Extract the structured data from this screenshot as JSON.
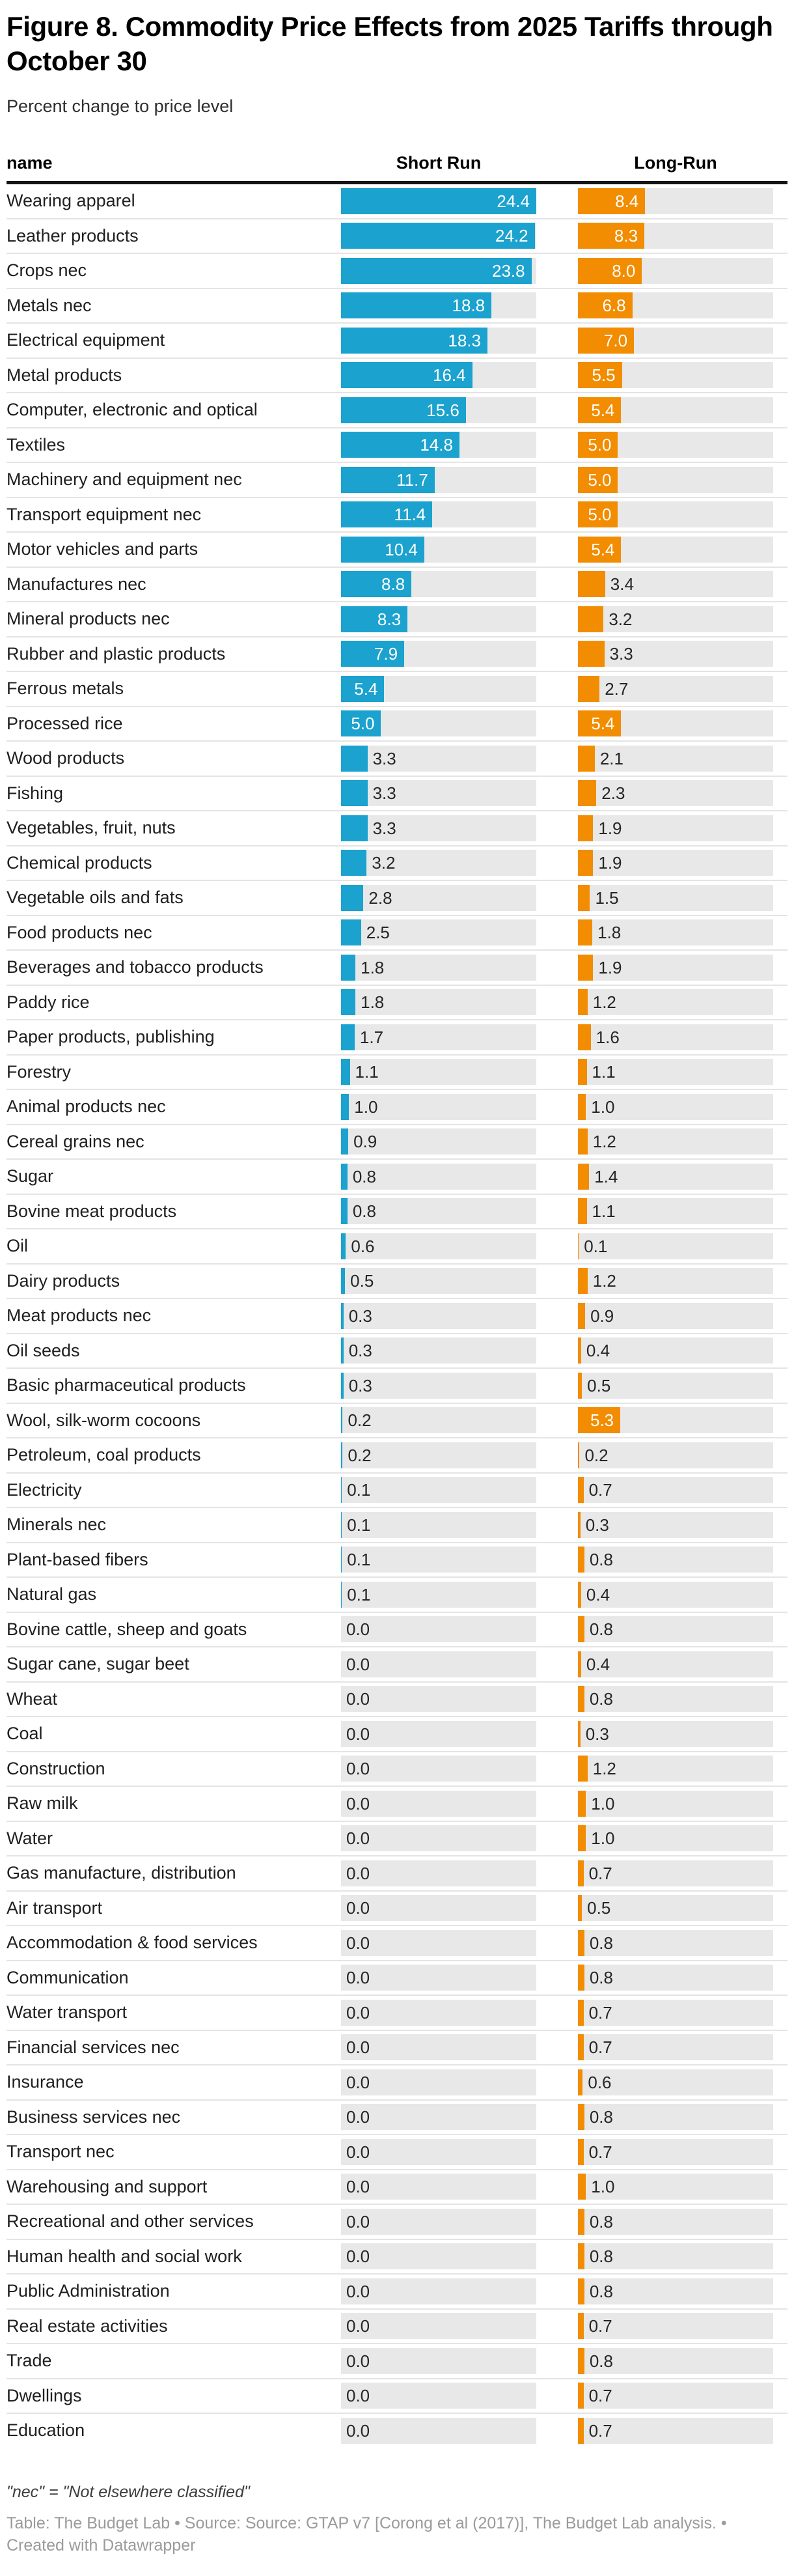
{
  "title": "Figure 8. Commodity Price Effects from 2025 Tariffs through October 30",
  "subtitle": "Percent change to price level",
  "columns": {
    "name": "name",
    "short_run": "Short Run",
    "long_run": "Long-Run"
  },
  "colors": {
    "short_run_bar": "#1ba2ce",
    "long_run_bar": "#f28c00",
    "bar_track": "#e8e8e8",
    "inside_label": "#ffffff",
    "outside_label": "#262626"
  },
  "footnote": "\"nec\" = \"Not elsewhere classified\"",
  "source_line": "Table: The Budget Lab • Source: Source: GTAP v7 [Corong et al (2017)], The Budget Lab analysis. • Created with Datawrapper",
  "chart_data": {
    "type": "bar",
    "orientation": "horizontal",
    "title": "Figure 8. Commodity Price Effects from 2025 Tariffs through October 30",
    "subtitle": "Percent change to price level",
    "xlabel": "",
    "ylabel": "name",
    "xlim": [
      0,
      24.4
    ],
    "grid": false,
    "legend_position": "column-headers",
    "value_format": "0.1f",
    "label_inside_threshold": 4.5,
    "categories": [
      "Wearing apparel",
      "Leather products",
      "Crops nec",
      "Metals nec",
      "Electrical equipment",
      "Metal products",
      "Computer, electronic and optical",
      "Textiles",
      "Machinery and equipment nec",
      "Transport equipment nec",
      "Motor vehicles and parts",
      "Manufactures nec",
      "Mineral products nec",
      "Rubber and plastic products",
      "Ferrous metals",
      "Processed rice",
      "Wood products",
      "Fishing",
      "Vegetables, fruit, nuts",
      "Chemical products",
      "Vegetable oils and fats",
      "Food products nec",
      "Beverages and tobacco products",
      "Paddy rice",
      "Paper products, publishing",
      "Forestry",
      "Animal products nec",
      "Cereal grains nec",
      "Sugar",
      "Bovine meat products",
      "Oil",
      "Dairy products",
      "Meat products nec",
      "Oil seeds",
      "Basic pharmaceutical products",
      "Wool, silk-worm cocoons",
      "Petroleum, coal products",
      "Electricity",
      "Minerals nec",
      "Plant-based fibers",
      "Natural gas",
      "Bovine cattle, sheep and goats",
      "Sugar cane, sugar beet",
      "Wheat",
      "Coal",
      "Construction",
      "Raw milk",
      "Water",
      "Gas manufacture, distribution",
      "Air transport",
      "Accommodation & food services",
      "Communication",
      "Water transport",
      "Financial services nec",
      "Insurance",
      "Business services nec",
      "Transport nec",
      "Warehousing and support",
      "Recreational and other services",
      "Human health and social work",
      "Public Administration",
      "Real estate activities",
      "Trade",
      "Dwellings",
      "Education"
    ],
    "series": [
      {
        "name": "Short Run",
        "color": "#1ba2ce",
        "values": [
          24.4,
          24.2,
          23.8,
          18.8,
          18.3,
          16.4,
          15.6,
          14.8,
          11.7,
          11.4,
          10.4,
          8.8,
          8.3,
          7.9,
          5.4,
          5.0,
          3.3,
          3.3,
          3.3,
          3.2,
          2.8,
          2.5,
          1.8,
          1.8,
          1.7,
          1.1,
          1.0,
          0.9,
          0.8,
          0.8,
          0.6,
          0.5,
          0.3,
          0.3,
          0.3,
          0.2,
          0.2,
          0.1,
          0.1,
          0.1,
          0.1,
          0.0,
          0.0,
          0.0,
          0.0,
          0.0,
          0.0,
          0.0,
          0.0,
          0.0,
          0.0,
          0.0,
          0.0,
          0.0,
          0.0,
          0.0,
          0.0,
          0.0,
          0.0,
          0.0,
          0.0,
          0.0,
          0.0,
          0.0,
          0.0
        ]
      },
      {
        "name": "Long-Run",
        "color": "#f28c00",
        "values": [
          8.4,
          8.3,
          8.0,
          6.8,
          7.0,
          5.5,
          5.4,
          5.0,
          5.0,
          5.0,
          5.4,
          3.4,
          3.2,
          3.3,
          2.7,
          5.4,
          2.1,
          2.3,
          1.9,
          1.9,
          1.5,
          1.8,
          1.9,
          1.2,
          1.6,
          1.1,
          1.0,
          1.2,
          1.4,
          1.1,
          0.1,
          1.2,
          0.9,
          0.4,
          0.5,
          5.3,
          0.2,
          0.7,
          0.3,
          0.8,
          0.4,
          0.8,
          0.4,
          0.8,
          0.3,
          1.2,
          1.0,
          1.0,
          0.7,
          0.5,
          0.8,
          0.8,
          0.7,
          0.7,
          0.6,
          0.8,
          0.7,
          1.0,
          0.8,
          0.8,
          0.8,
          0.7,
          0.8,
          0.7,
          0.7
        ]
      }
    ]
  }
}
